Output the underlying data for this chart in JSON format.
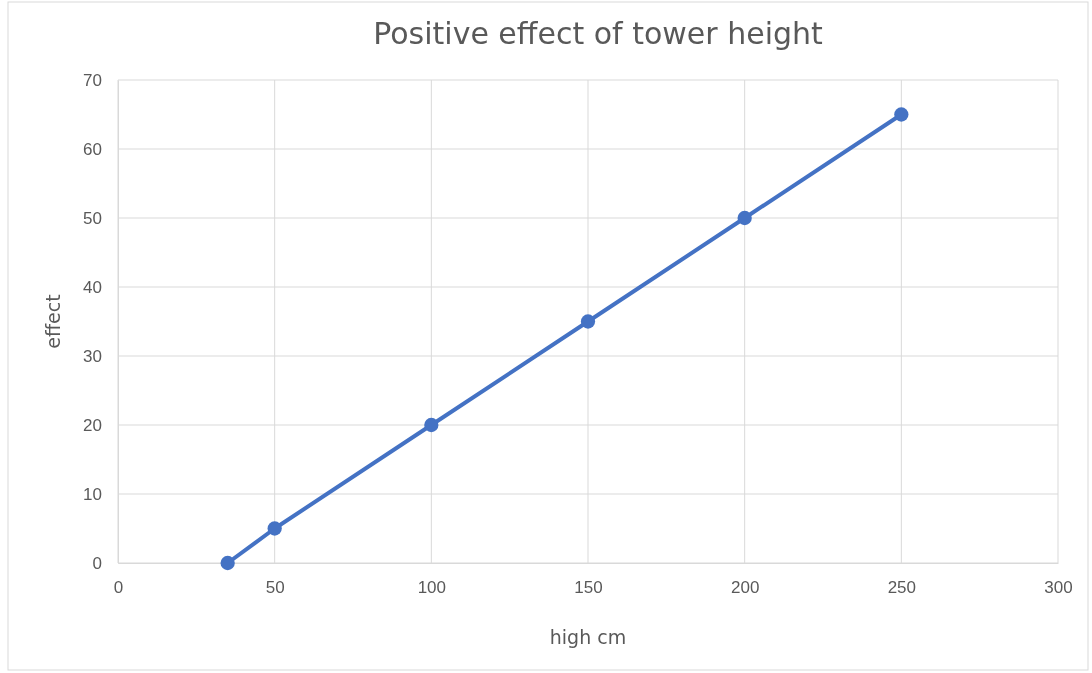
{
  "chart_data": {
    "type": "line",
    "title": "Positive effect of tower height",
    "xlabel": "high cm",
    "ylabel": "effect",
    "x": [
      35,
      50,
      100,
      150,
      200,
      250
    ],
    "series": [
      {
        "color": "#4472c4",
        "values": [
          0,
          5,
          20,
          35,
          50,
          65
        ]
      }
    ],
    "xlim": [
      0,
      300
    ],
    "xticks": [
      0,
      50,
      100,
      150,
      200,
      250,
      300
    ],
    "ylim": [
      0,
      70
    ],
    "yticks": [
      0,
      10,
      20,
      30,
      40,
      50,
      60,
      70
    ],
    "grid": true,
    "marker": "circle",
    "line_style": "solid"
  }
}
